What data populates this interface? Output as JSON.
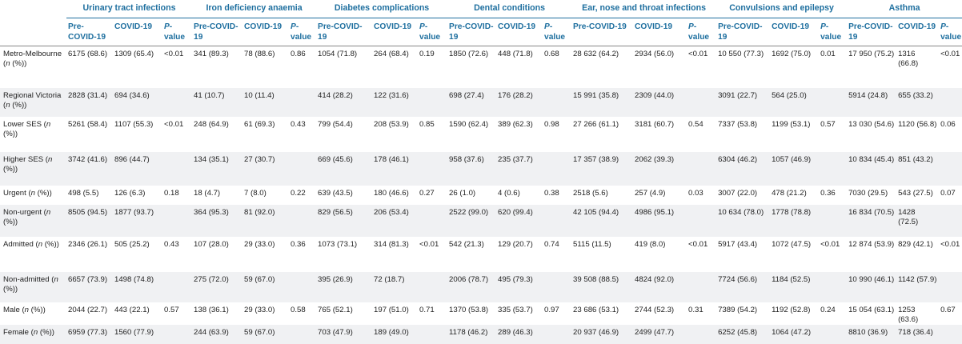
{
  "groups": [
    {
      "label": "Urinary tract infections"
    },
    {
      "label": "Iron deficiency anaemia"
    },
    {
      "label": "Diabetes complications"
    },
    {
      "label": "Dental conditions"
    },
    {
      "label": "Ear, nose and throat infections"
    },
    {
      "label": "Convulsions and epilepsy"
    },
    {
      "label": "Asthma"
    }
  ],
  "sub": {
    "pre": "Pre-COVID-19",
    "covid": "COVID-19",
    "p": "P-value"
  },
  "rows": [
    {
      "label": "Metro-Melbourne",
      "suffix": "(n (%))",
      "cells": [
        "6175 (68.6)",
        "1309 (65.4)",
        "<0.01",
        "341 (89.3)",
        "78 (88.6)",
        "0.86",
        "1054 (71.8)",
        "264 (68.4)",
        "0.19",
        "1850 (72.6)",
        "448 (71.8)",
        "0.68",
        "28 632 (64.2)",
        "2934 (56.0)",
        "<0.01",
        "10 550 (77.3)",
        "1692 (75.0)",
        "0.01",
        "17 950 (75.2)",
        "1316 (66.8)",
        "<0.01"
      ]
    },
    {
      "label": "Regional Victoria",
      "suffix": "(n (%))",
      "cells": [
        "2828 (31.4)",
        "694 (34.6)",
        "",
        "41 (10.7)",
        "10 (11.4)",
        "",
        "414 (28.2)",
        "122 (31.6)",
        "",
        "698 (27.4)",
        "176 (28.2)",
        "",
        "15 991 (35.8)",
        "2309 (44.0)",
        "",
        "3091 (22.7)",
        "564 (25.0)",
        "",
        "5914 (24.8)",
        "655 (33.2)",
        ""
      ]
    },
    {
      "label": "Lower SES",
      "suffix": "(n (%))",
      "cells": [
        "5261 (58.4)",
        "1107 (55.3)",
        "<0.01",
        "248 (64.9)",
        "61 (69.3)",
        "0.43",
        "799 (54.4)",
        "208 (53.9)",
        "0.85",
        "1590 (62.4)",
        "389 (62.3)",
        "0.98",
        "27 266 (61.1)",
        "3181 (60.7)",
        "0.54",
        "7337 (53.8)",
        "1199 (53.1)",
        "0.57",
        "13 030 (54.6)",
        "1120 (56.8)",
        "0.06"
      ]
    },
    {
      "label": "Higher SES",
      "suffix": "(n (%))",
      "cells": [
        "3742 (41.6)",
        "896 (44.7)",
        "",
        "134 (35.1)",
        "27 (30.7)",
        "",
        "669 (45.6)",
        "178 (46.1)",
        "",
        "958 (37.6)",
        "235 (37.7)",
        "",
        "17 357 (38.9)",
        "2062 (39.3)",
        "",
        "6304 (46.2)",
        "1057 (46.9)",
        "",
        "10 834 (45.4)",
        "851 (43.2)",
        ""
      ]
    },
    {
      "label": "Urgent",
      "suffix": "(n (%))",
      "cells": [
        "498 (5.5)",
        "126 (6.3)",
        "0.18",
        "18 (4.7)",
        "7 (8.0)",
        "0.22",
        "639 (43.5)",
        "180 (46.6)",
        "0.27",
        "26 (1.0)",
        "4 (0.6)",
        "0.38",
        "2518 (5.6)",
        "257 (4.9)",
        "0.03",
        "3007 (22.0)",
        "478 (21.2)",
        "0.36",
        "7030 (29.5)",
        "543 (27.5)",
        "0.07"
      ]
    },
    {
      "label": "Non-urgent",
      "suffix": "(n (%))",
      "cells": [
        "8505 (94.5)",
        "1877 (93.7)",
        "",
        "364 (95.3)",
        "81 (92.0)",
        "",
        "829 (56.5)",
        "206 (53.4)",
        "",
        "2522 (99.0)",
        "620 (99.4)",
        "",
        "42 105 (94.4)",
        "4986 (95.1)",
        "",
        "10 634 (78.0)",
        "1778 (78.8)",
        "",
        "16 834 (70.5)",
        "1428 (72.5)",
        ""
      ]
    },
    {
      "label": "Admitted",
      "suffix": "(n (%))",
      "cells": [
        "2346 (26.1)",
        "505 (25.2)",
        "0.43",
        "107 (28.0)",
        "29 (33.0)",
        "0.36",
        "1073 (73.1)",
        "314 (81.3)",
        "<0.01",
        "542 (21.3)",
        "129 (20.7)",
        "0.74",
        "5115 (11.5)",
        "419 (8.0)",
        "<0.01",
        "5917 (43.4)",
        "1072 (47.5)",
        "<0.01",
        "12 874 (53.9)",
        "829 (42.1)",
        "<0.01"
      ]
    },
    {
      "label": "Non-admitted",
      "suffix": "(n (%))",
      "cells": [
        "6657 (73.9)",
        "1498 (74.8)",
        "",
        "275 (72.0)",
        "59 (67.0)",
        "",
        "395 (26.9)",
        "72 (18.7)",
        "",
        "2006 (78.7)",
        "495 (79.3)",
        "",
        "39 508 (88.5)",
        "4824 (92.0)",
        "",
        "7724 (56.6)",
        "1184 (52.5)",
        "",
        "10 990 (46.1)",
        "1142 (57.9)",
        ""
      ]
    },
    {
      "label": "Male",
      "suffix": "(n (%))",
      "cells": [
        "2044 (22.7)",
        "443 (22.1)",
        "0.57",
        "138 (36.1)",
        "29 (33.0)",
        "0.58",
        "765 (52.1)",
        "197 (51.0)",
        "0.71",
        "1370 (53.8)",
        "335 (53.7)",
        "0.97",
        "23 686 (53.1)",
        "2744 (52.3)",
        "0.31",
        "7389 (54.2)",
        "1192 (52.8)",
        "0.24",
        "15 054 (63.1)",
        "1253 (63.6)",
        "0.67"
      ]
    },
    {
      "label": "Female",
      "suffix": "(n (%))",
      "cells": [
        "6959 (77.3)",
        "1560 (77.9)",
        "",
        "244 (63.9)",
        "59 (67.0)",
        "",
        "703 (47.9)",
        "189 (49.0)",
        "",
        "1178 (46.2)",
        "289 (46.3)",
        "",
        "20 937 (46.9)",
        "2499 (47.7)",
        "",
        "6252 (45.8)",
        "1064 (47.2)",
        "",
        "8810 (36.9)",
        "718 (36.4)",
        ""
      ]
    }
  ]
}
